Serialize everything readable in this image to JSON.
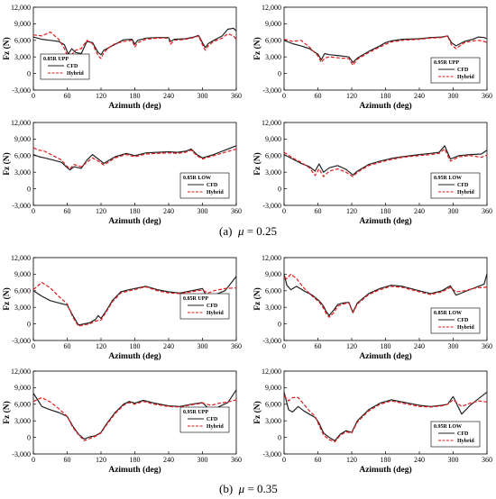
{
  "captions": [
    {
      "letter": "(a)",
      "symbol": "μ",
      "text": " = 0.25"
    },
    {
      "letter": "(b)",
      "symbol": "μ",
      "text": " = 0.35"
    }
  ],
  "colors": {
    "CFD": "#222222",
    "Hybrid": "#e31a1c"
  },
  "chart_data": [
    {
      "type": "line",
      "group": "a",
      "legend_title": "0.85R UPP",
      "legend_placement": "bottom-left",
      "xlabel": "Azimuth (deg)",
      "ylabel": "Fz (N)",
      "xlim": [
        0,
        360
      ],
      "ylim": [
        -3000,
        12000
      ],
      "xticks": [
        0,
        60,
        120,
        180,
        240,
        300,
        360
      ],
      "yticks": [
        "-3,000",
        "0",
        "3,000",
        "6,000",
        "9,000",
        "12,000"
      ],
      "x": [
        0,
        15,
        30,
        45,
        55,
        62,
        68,
        75,
        85,
        95,
        105,
        115,
        120,
        125,
        140,
        160,
        175,
        180,
        185,
        200,
        220,
        240,
        243,
        250,
        270,
        285,
        293,
        300,
        305,
        310,
        320,
        335,
        345,
        355,
        360
      ],
      "series": [
        {
          "name": "CFD",
          "values": [
            6600,
            6200,
            6000,
            5800,
            5200,
            3500,
            4500,
            3800,
            3600,
            5800,
            5600,
            3800,
            3400,
            4200,
            5000,
            6100,
            6200,
            5300,
            6000,
            6400,
            6500,
            6500,
            5800,
            6200,
            6300,
            6600,
            6900,
            5600,
            4700,
            5400,
            6000,
            6800,
            8000,
            8200,
            7700
          ]
        },
        {
          "name": "Hybrid",
          "values": [
            7000,
            6800,
            7500,
            6200,
            4500,
            2800,
            3400,
            4200,
            4500,
            6000,
            5400,
            3200,
            2700,
            3800,
            5200,
            5800,
            6000,
            4800,
            5600,
            6200,
            6400,
            6400,
            5300,
            6000,
            6200,
            6500,
            6800,
            5200,
            4200,
            5000,
            5800,
            6400,
            7200,
            6800,
            6200
          ]
        }
      ]
    },
    {
      "type": "line",
      "group": "a",
      "legend_title": "0.95R UPP",
      "legend_placement": "bottom-right",
      "xlabel": "Azimuth (deg)",
      "ylabel": "Fz (N)",
      "xlim": [
        0,
        360
      ],
      "ylim": [
        -3000,
        12000
      ],
      "xticks": [
        0,
        60,
        120,
        180,
        240,
        300,
        360
      ],
      "yticks": [
        "-3,000",
        "0",
        "3,000",
        "6,000",
        "9,000",
        "12,000"
      ],
      "x": [
        0,
        15,
        30,
        45,
        60,
        66,
        72,
        80,
        100,
        115,
        122,
        130,
        150,
        170,
        180,
        190,
        210,
        240,
        260,
        280,
        290,
        297,
        305,
        320,
        335,
        345,
        355,
        360
      ],
      "series": [
        {
          "name": "CFD",
          "values": [
            6000,
            5400,
            5000,
            4500,
            3500,
            2500,
            3600,
            3400,
            3200,
            3000,
            2000,
            2800,
            4000,
            5000,
            5600,
            5900,
            6200,
            6300,
            6500,
            6600,
            6800,
            5600,
            5000,
            5800,
            6200,
            6600,
            6500,
            6300
          ]
        },
        {
          "name": "Hybrid",
          "values": [
            6200,
            5800,
            6000,
            4800,
            3200,
            2000,
            2800,
            3000,
            2800,
            2700,
            1500,
            2600,
            3800,
            4800,
            5300,
            5700,
            6000,
            6200,
            6400,
            6500,
            6800,
            5200,
            4500,
            5600,
            5900,
            6000,
            5800,
            5600
          ]
        }
      ]
    },
    {
      "type": "line",
      "group": "a",
      "legend_title": "0.85R LOW",
      "legend_placement": "bottom-right",
      "xlabel": "Azimuth (deg)",
      "ylabel": "Fz (N)",
      "xlim": [
        0,
        360
      ],
      "ylim": [
        -3000,
        12000
      ],
      "xticks": [
        0,
        60,
        120,
        180,
        240,
        300,
        360
      ],
      "yticks": [
        "-3,000",
        "0",
        "3,000",
        "6,000",
        "9,000",
        "12,000"
      ],
      "x": [
        0,
        10,
        20,
        35,
        50,
        58,
        65,
        72,
        85,
        95,
        105,
        115,
        125,
        145,
        165,
        180,
        200,
        220,
        240,
        255,
        270,
        280,
        290,
        300,
        320,
        340,
        360
      ],
      "series": [
        {
          "name": "CFD",
          "values": [
            6200,
            5800,
            5600,
            5200,
            4800,
            4000,
            3400,
            4000,
            3700,
            5200,
            6200,
            5400,
            4600,
            5800,
            6400,
            6000,
            6500,
            6600,
            6700,
            6600,
            6800,
            7200,
            6200,
            5600,
            6200,
            7000,
            7800
          ]
        },
        {
          "name": "Hybrid",
          "values": [
            7400,
            7000,
            6800,
            6000,
            5200,
            4200,
            3600,
            4400,
            4000,
            4800,
            5600,
            5000,
            4300,
            5600,
            6200,
            5800,
            6300,
            6400,
            6500,
            6400,
            6600,
            7000,
            6000,
            5400,
            6000,
            6600,
            7200
          ]
        }
      ]
    },
    {
      "type": "line",
      "group": "a",
      "legend_title": "0.95R LOW",
      "legend_placement": "bottom-right",
      "xlabel": "Azimuth (deg)",
      "ylabel": "Fz (N)",
      "xlim": [
        0,
        360
      ],
      "ylim": [
        -3000,
        12000
      ],
      "xticks": [
        0,
        60,
        120,
        180,
        240,
        300,
        360
      ],
      "yticks": [
        "-3,000",
        "0",
        "3,000",
        "6,000",
        "9,000",
        "12,000"
      ],
      "x": [
        0,
        15,
        30,
        45,
        55,
        62,
        70,
        80,
        95,
        110,
        122,
        130,
        150,
        170,
        190,
        210,
        240,
        260,
        275,
        285,
        295,
        310,
        330,
        350,
        360
      ],
      "series": [
        {
          "name": "CFD",
          "values": [
            6200,
            5400,
            4600,
            4000,
            3200,
            4500,
            3000,
            3800,
            4200,
            3500,
            2500,
            3200,
            4400,
            5000,
            5500,
            5800,
            6200,
            6400,
            6600,
            7800,
            5400,
            6000,
            6200,
            6300,
            7000
          ]
        },
        {
          "name": "Hybrid",
          "values": [
            6600,
            5600,
            4800,
            3800,
            2400,
            3600,
            2200,
            3200,
            3600,
            3000,
            2200,
            3000,
            4200,
            4800,
            5300,
            5700,
            6000,
            6200,
            6400,
            7200,
            5000,
            5800,
            6000,
            5700,
            6100
          ]
        }
      ]
    },
    {
      "type": "line",
      "group": "b",
      "legend_title": "0.85R UPP",
      "legend_placement": "middle-right",
      "xlabel": "Azimuth (deg)",
      "ylabel": "Fz (N)",
      "xlim": [
        0,
        360
      ],
      "ylim": [
        -3000,
        12000
      ],
      "xticks": [
        0,
        60,
        120,
        180,
        240,
        300,
        360
      ],
      "yticks": [
        "-3,000",
        "0",
        "3,000",
        "6,000",
        "9,000",
        "12,000"
      ],
      "x": [
        0,
        15,
        30,
        45,
        60,
        70,
        80,
        90,
        100,
        110,
        115,
        120,
        130,
        140,
        155,
        170,
        180,
        190,
        200,
        220,
        240,
        260,
        280,
        290,
        300,
        310,
        320,
        340,
        360
      ],
      "series": [
        {
          "name": "CFD",
          "values": [
            6000,
            5000,
            4200,
            3800,
            3400,
            1500,
            -200,
            0,
            200,
            800,
            1500,
            1000,
            2500,
            4200,
            5800,
            6200,
            6400,
            6600,
            6800,
            6200,
            5800,
            5600,
            6000,
            6200,
            6400,
            4500,
            5200,
            6000,
            8600
          ]
        },
        {
          "name": "Hybrid",
          "values": [
            6200,
            7500,
            6500,
            5000,
            3600,
            1200,
            -400,
            -200,
            0,
            500,
            600,
            700,
            2300,
            4000,
            5600,
            6000,
            6200,
            6500,
            6700,
            6000,
            5600,
            5500,
            5800,
            6000,
            6100,
            5600,
            6000,
            6400,
            6500
          ]
        }
      ]
    },
    {
      "type": "line",
      "group": "b",
      "legend_title": "0.85R LOW",
      "legend_placement": "bottom-right",
      "xlabel": "Azimuth (deg)",
      "ylabel": "Fz (N)",
      "xlim": [
        0,
        360
      ],
      "ylim": [
        -3000,
        12000
      ],
      "xticks": [
        0,
        60,
        120,
        180,
        240,
        300,
        360
      ],
      "yticks": [
        "-3,000",
        "0",
        "3,000",
        "6,000",
        "9,000",
        "12,000"
      ],
      "x": [
        0,
        5,
        12,
        22,
        35,
        50,
        62,
        70,
        75,
        80,
        88,
        95,
        105,
        115,
        122,
        130,
        150,
        170,
        190,
        210,
        240,
        260,
        280,
        295,
        305,
        320,
        340,
        355,
        360
      ],
      "series": [
        {
          "name": "CFD",
          "values": [
            9000,
            7000,
            6200,
            6800,
            6000,
            5200,
            4200,
            3200,
            2200,
            1500,
            2500,
            3500,
            3800,
            3900,
            2100,
            3800,
            5500,
            6400,
            7000,
            6800,
            6000,
            5500,
            6000,
            6900,
            5200,
            5800,
            6600,
            7200,
            9100
          ]
        },
        {
          "name": "Hybrid",
          "values": [
            8400,
            8200,
            9000,
            8200,
            6500,
            5000,
            4000,
            2800,
            1800,
            1200,
            2000,
            3200,
            3600,
            3800,
            2000,
            3600,
            5300,
            6200,
            6800,
            6600,
            5800,
            5300,
            5800,
            6600,
            5800,
            6000,
            6500,
            6600,
            6700
          ]
        }
      ]
    },
    {
      "type": "line",
      "group": "b",
      "legend_title": "0.95R UPP",
      "legend_placement": "middle-right",
      "xlabel": "Azimuth (deg)",
      "ylabel": "Fz (N)",
      "xlim": [
        0,
        360
      ],
      "ylim": [
        -3000,
        12000
      ],
      "xticks": [
        0,
        60,
        120,
        180,
        240,
        300,
        360
      ],
      "yticks": [
        "-3,000",
        "0",
        "3,000",
        "6,000",
        "9,000",
        "12,000"
      ],
      "x": [
        0,
        15,
        30,
        45,
        60,
        70,
        80,
        90,
        100,
        110,
        120,
        130,
        145,
        160,
        170,
        180,
        195,
        215,
        240,
        260,
        280,
        300,
        315,
        330,
        345,
        360
      ],
      "series": [
        {
          "name": "CFD",
          "values": [
            8000,
            5600,
            5000,
            4500,
            3800,
            2000,
            600,
            -300,
            100,
            300,
            900,
            2500,
            4500,
            6000,
            6500,
            6200,
            6700,
            6200,
            5700,
            5600,
            6000,
            6300,
            4800,
            5600,
            6300,
            8600
          ]
        },
        {
          "name": "Hybrid",
          "values": [
            6500,
            7200,
            6400,
            5200,
            3800,
            1800,
            500,
            -600,
            -200,
            200,
            800,
            2300,
            4300,
            5800,
            6300,
            6000,
            6500,
            6000,
            5600,
            5500,
            5900,
            6200,
            5800,
            6200,
            6400,
            6800
          ]
        }
      ]
    },
    {
      "type": "line",
      "group": "b",
      "legend_title": "0.95R LOW",
      "legend_placement": "bottom-right",
      "xlabel": "Azimuth (deg)",
      "ylabel": "Fz (N)",
      "xlim": [
        0,
        360
      ],
      "ylim": [
        -3000,
        12000
      ],
      "xticks": [
        0,
        60,
        120,
        180,
        240,
        300,
        360
      ],
      "yticks": [
        "-3,000",
        "0",
        "3,000",
        "6,000",
        "9,000",
        "12,000"
      ],
      "x": [
        0,
        8,
        15,
        25,
        35,
        45,
        55,
        62,
        70,
        80,
        90,
        100,
        110,
        120,
        130,
        150,
        170,
        190,
        210,
        240,
        260,
        280,
        290,
        300,
        315,
        330,
        345,
        360
      ],
      "series": [
        {
          "name": "CFD",
          "values": [
            8200,
            5000,
            4600,
            5600,
            4800,
            4200,
            3600,
            2600,
            800,
            0,
            -600,
            600,
            1200,
            900,
            3000,
            5000,
            6200,
            6800,
            6400,
            5800,
            5600,
            5800,
            6000,
            7400,
            4200,
            5800,
            7000,
            8200
          ]
        },
        {
          "name": "Hybrid",
          "values": [
            7500,
            6600,
            7200,
            7200,
            6000,
            4800,
            3800,
            2200,
            400,
            -400,
            -800,
            400,
            1000,
            800,
            2800,
            4800,
            6000,
            6600,
            6200,
            5600,
            5500,
            5700,
            6000,
            6800,
            5600,
            6200,
            6600,
            6400
          ]
        }
      ]
    }
  ]
}
